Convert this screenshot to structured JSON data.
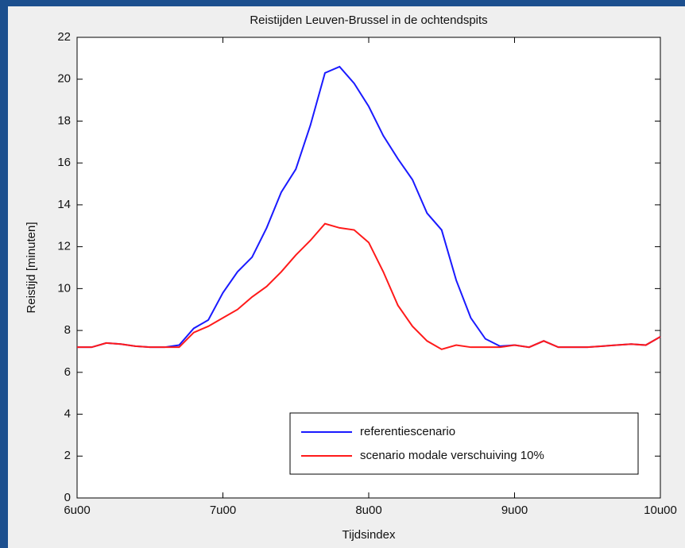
{
  "chart_data": {
    "type": "line",
    "title": "Reistijden Leuven-Brussel in de ochtendspits",
    "x_label": "Tijdsindex",
    "y_label": "Reistijd [minuten]",
    "x": [
      6.0,
      6.1,
      6.2,
      6.3,
      6.4,
      6.5,
      6.6,
      6.7,
      6.8,
      6.9,
      7.0,
      7.1,
      7.2,
      7.3,
      7.4,
      7.5,
      7.6,
      7.7,
      7.8,
      7.9,
      8.0,
      8.1,
      8.2,
      8.3,
      8.4,
      8.5,
      8.6,
      8.7,
      8.8,
      8.9,
      9.0,
      9.1,
      9.2,
      9.3,
      9.4,
      9.5,
      9.6,
      9.7,
      9.8,
      9.9,
      10.0
    ],
    "series": [
      {
        "name": "referentiescenario",
        "color": "#1a1aff",
        "values": [
          7.2,
          7.2,
          7.4,
          7.35,
          7.25,
          7.2,
          7.2,
          7.3,
          8.1,
          8.5,
          9.8,
          10.8,
          11.5,
          12.9,
          14.6,
          15.7,
          17.8,
          20.3,
          20.6,
          19.8,
          18.7,
          17.3,
          16.2,
          15.2,
          13.6,
          12.8,
          10.4,
          8.6,
          7.6,
          7.25,
          7.3,
          7.2,
          7.5,
          7.2,
          7.2,
          7.2,
          7.25,
          7.3,
          7.35,
          7.3,
          7.7
        ]
      },
      {
        "name": "scenario modale verschuiving 10%",
        "color": "#ff1a1a",
        "values": [
          7.2,
          7.2,
          7.4,
          7.35,
          7.25,
          7.2,
          7.2,
          7.2,
          7.9,
          8.2,
          8.6,
          9.0,
          9.6,
          10.1,
          10.8,
          11.6,
          12.3,
          13.1,
          12.9,
          12.8,
          12.2,
          10.8,
          9.2,
          8.2,
          7.5,
          7.1,
          7.3,
          7.2,
          7.2,
          7.2,
          7.3,
          7.2,
          7.5,
          7.2,
          7.2,
          7.2,
          7.25,
          7.3,
          7.35,
          7.3,
          7.7
        ]
      }
    ],
    "xlim": [
      6,
      10
    ],
    "xticks": [
      {
        "value": 6,
        "label": "6u00"
      },
      {
        "value": 7,
        "label": "7u00"
      },
      {
        "value": 8,
        "label": "8u00"
      },
      {
        "value": 9,
        "label": "9u00"
      },
      {
        "value": 10,
        "label": "10u00"
      }
    ],
    "ylim": [
      0,
      22
    ],
    "yticks": [
      0,
      2,
      4,
      6,
      8,
      10,
      12,
      14,
      16,
      18,
      20,
      22
    ],
    "grid": false,
    "legend": "lower right"
  }
}
